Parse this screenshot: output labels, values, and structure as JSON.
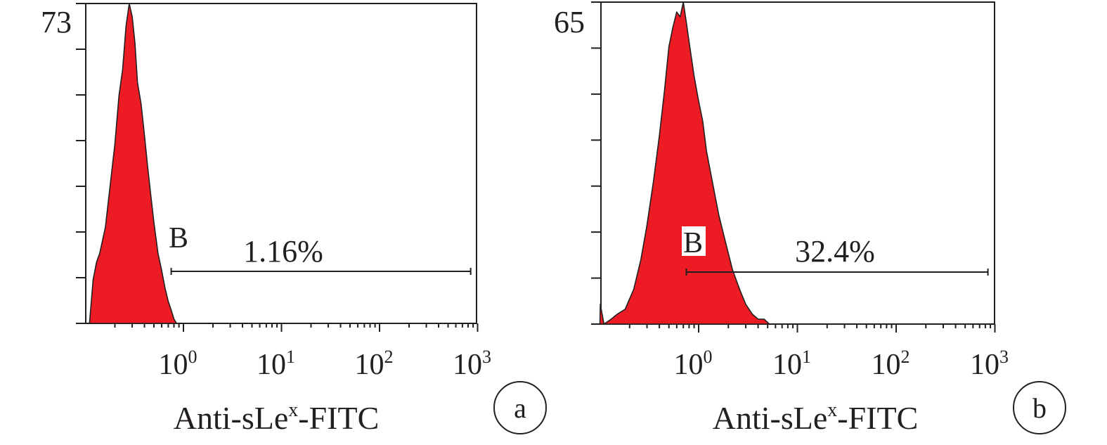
{
  "chart_data": [
    {
      "type": "area",
      "panel_label": "a",
      "xlabel_main": "Anti-sLe",
      "xlabel_sup": "x",
      "xlabel_suffix": "-FITC",
      "ylabel": "",
      "y_max_label": "73",
      "ylim": [
        0,
        73
      ],
      "x_scale": "log",
      "xlim": [
        0.1,
        1000
      ],
      "x_ticks": [
        {
          "value": 1,
          "base": "10",
          "exp": "0"
        },
        {
          "value": 10,
          "base": "10",
          "exp": "1"
        },
        {
          "value": 100,
          "base": "10",
          "exp": "2"
        },
        {
          "value": 1000,
          "base": "10",
          "exp": "3"
        }
      ],
      "gate": {
        "label": "B",
        "percent": "1.16%",
        "x_start": 0.75,
        "x_end": 850
      },
      "histogram": {
        "x": [
          0.11,
          0.12,
          0.13,
          0.14,
          0.16,
          0.18,
          0.2,
          0.22,
          0.24,
          0.26,
          0.28,
          0.3,
          0.32,
          0.34,
          0.37,
          0.4,
          0.43,
          0.46,
          0.5,
          0.55,
          0.6,
          0.65,
          0.7,
          0.75,
          0.8,
          0.85
        ],
        "y": [
          0,
          10,
          14,
          16,
          22,
          32,
          41,
          52,
          58,
          68,
          73,
          70,
          64,
          55,
          50,
          43,
          36,
          30,
          23,
          16,
          12,
          8,
          5,
          3,
          1,
          0
        ]
      },
      "fill_color": "#ed1c24"
    },
    {
      "type": "area",
      "panel_label": "b",
      "xlabel_main": "Anti-sLe",
      "xlabel_sup": "x",
      "xlabel_suffix": "-FITC",
      "ylabel": "",
      "y_max_label": "65",
      "ylim": [
        0,
        65
      ],
      "x_scale": "log",
      "xlim": [
        0.1,
        1000
      ],
      "x_ticks": [
        {
          "value": 1,
          "base": "10",
          "exp": "0"
        },
        {
          "value": 10,
          "base": "10",
          "exp": "1"
        },
        {
          "value": 100,
          "base": "10",
          "exp": "2"
        },
        {
          "value": 1000,
          "base": "10",
          "exp": "3"
        }
      ],
      "gate": {
        "label": "B",
        "percent": "32.4%",
        "x_start": 0.75,
        "x_end": 850
      },
      "histogram": {
        "x": [
          0.1,
          0.101,
          0.11,
          0.13,
          0.15,
          0.18,
          0.22,
          0.26,
          0.3,
          0.35,
          0.4,
          0.45,
          0.5,
          0.55,
          0.6,
          0.65,
          0.7,
          0.75,
          0.8,
          0.9,
          1.0,
          1.1,
          1.2,
          1.4,
          1.6,
          1.9,
          2.2,
          2.6,
          3.0,
          3.5,
          4.0,
          4.6,
          5.2
        ],
        "y": [
          0,
          4,
          0,
          1,
          2,
          3,
          7,
          13,
          20,
          29,
          38,
          47,
          56,
          60,
          63,
          62,
          65,
          61,
          57,
          50,
          45,
          41,
          35,
          28,
          22,
          16,
          11,
          7,
          4,
          2,
          1,
          1,
          0
        ]
      },
      "fill_color": "#ed1c24"
    }
  ]
}
